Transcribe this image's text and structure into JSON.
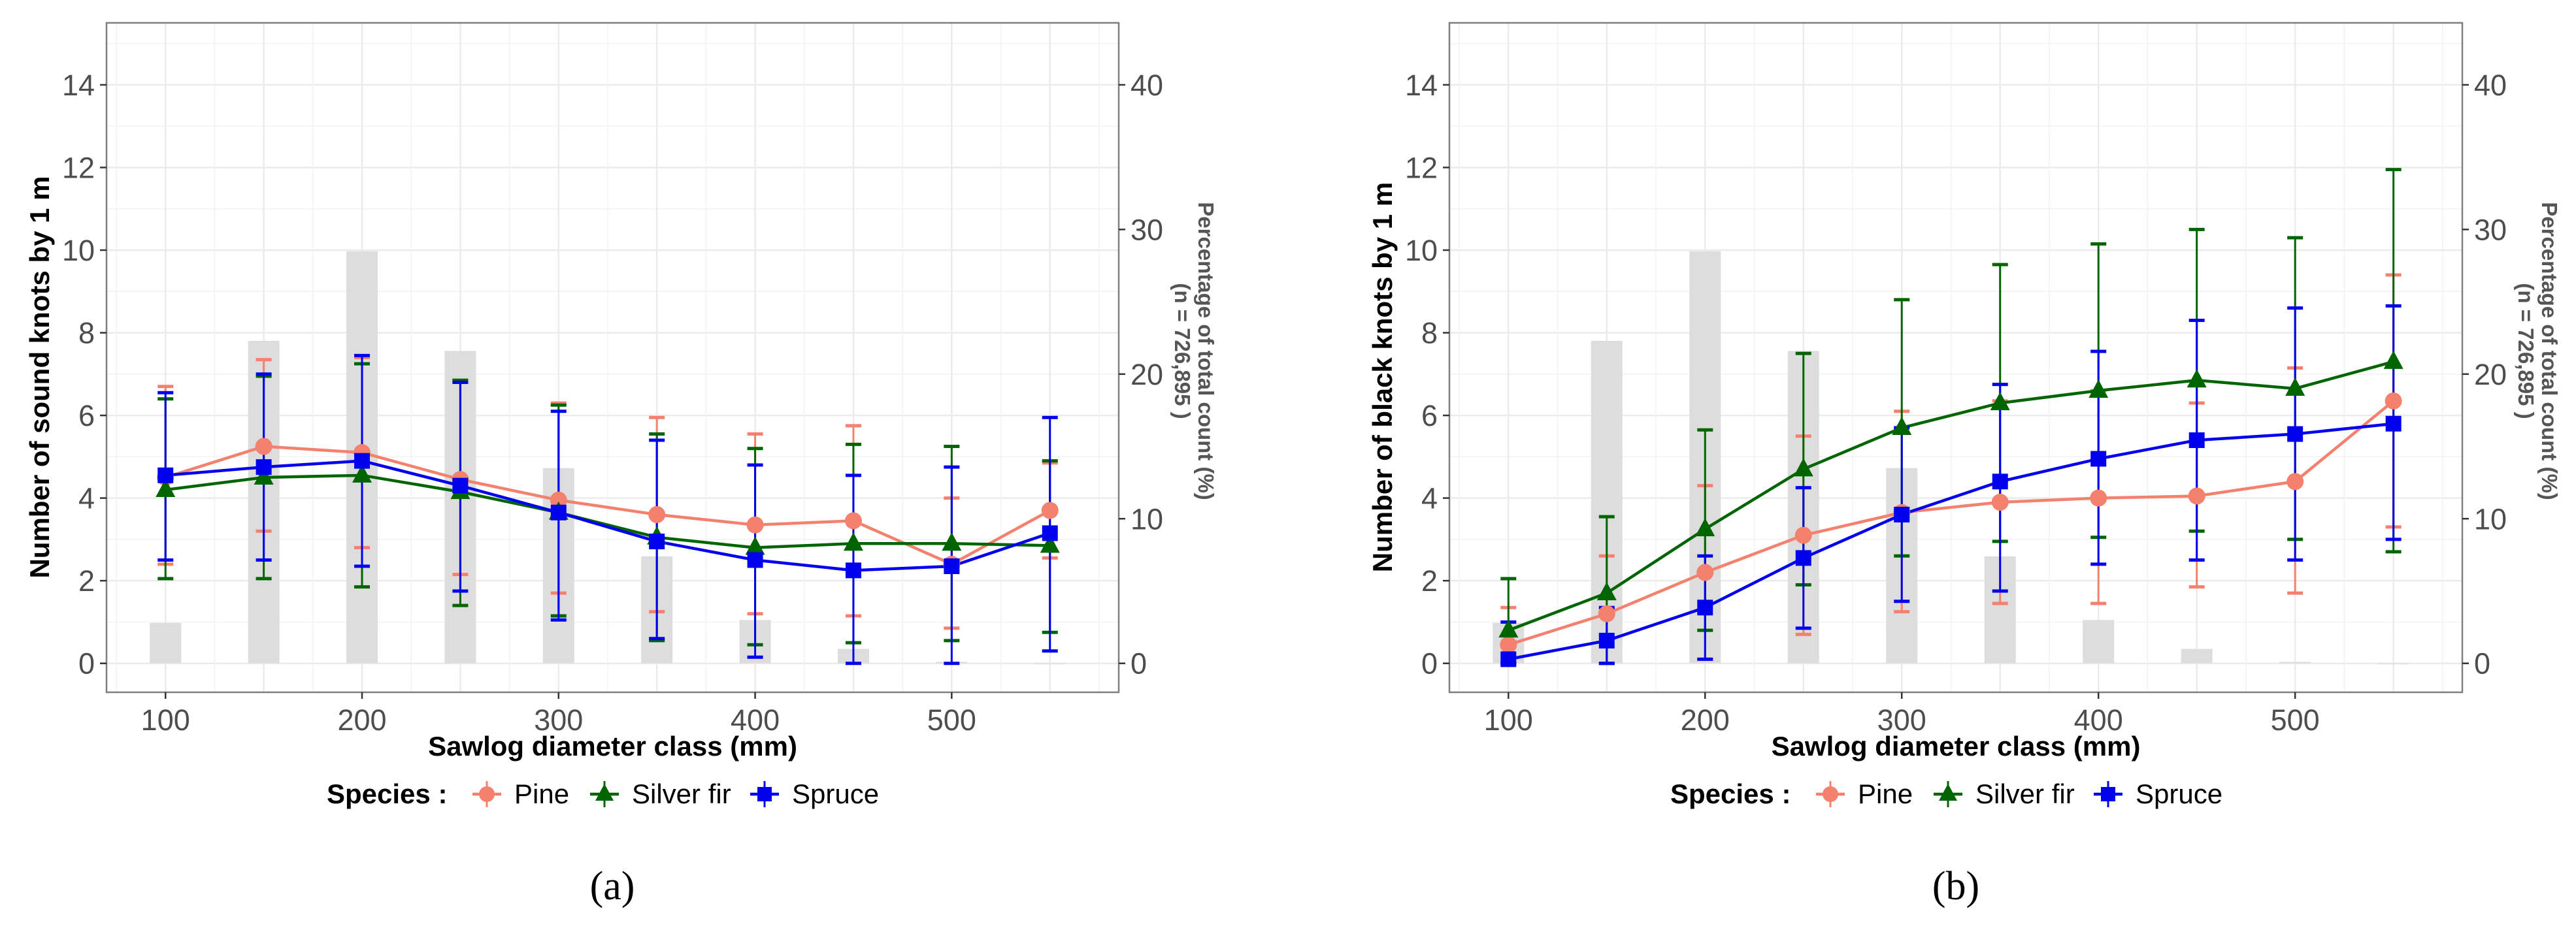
{
  "legend": {
    "title": "Species :",
    "items": [
      "Pine",
      "Silver fir",
      "Spruce"
    ]
  },
  "colors": {
    "Pine": "#f4806e",
    "Silver fir": "#006400",
    "Spruce": "#0000ee",
    "bars": "#dddddd"
  },
  "chart_data": [
    {
      "type": "line",
      "panel_label": "(a)",
      "xlabel": "Sawlog diameter class (mm)",
      "ylabel": "Number of sound knots by 1 m",
      "y2label": "Percentage of total count (%)",
      "y2label_n": "(n = 726,895 )",
      "x": [
        100,
        150,
        200,
        250,
        300,
        350,
        400,
        450,
        500,
        550
      ],
      "x_ticks": [
        "100",
        "200",
        "300",
        "400",
        "500"
      ],
      "y_ticks": [
        "0",
        "2",
        "4",
        "6",
        "8",
        "10",
        "12",
        "14"
      ],
      "y2_ticks": [
        "0",
        "10",
        "20",
        "30",
        "40"
      ],
      "xlim": [
        70,
        585
      ],
      "ylim": [
        -0.7,
        15.5
      ],
      "y2_scale_max_percent": 40,
      "bars_percent": [
        2.8,
        22.3,
        28.5,
        21.6,
        13.5,
        7.4,
        3.0,
        1.0,
        0.1,
        0.0
      ],
      "series": [
        {
          "name": "Pine",
          "marker": "circle",
          "values": [
            4.5,
            5.25,
            5.1,
            4.45,
            3.95,
            3.6,
            3.35,
            3.45,
            2.4,
            3.7
          ],
          "err_low": [
            2.4,
            3.2,
            2.8,
            2.15,
            1.7,
            1.25,
            1.2,
            1.15,
            0.85,
            2.55
          ],
          "err_high": [
            6.7,
            7.35,
            7.4,
            6.85,
            6.3,
            5.95,
            5.55,
            5.75,
            4.0,
            4.85
          ]
        },
        {
          "name": "Silver fir",
          "marker": "triangle",
          "values": [
            4.2,
            4.5,
            4.55,
            4.15,
            3.65,
            3.05,
            2.8,
            2.9,
            2.9,
            2.85
          ],
          "err_low": [
            2.05,
            2.05,
            1.85,
            1.4,
            1.15,
            0.55,
            0.45,
            0.5,
            0.55,
            0.75
          ],
          "err_high": [
            6.4,
            6.95,
            7.25,
            6.85,
            6.25,
            5.55,
            5.2,
            5.3,
            5.25,
            4.9
          ]
        },
        {
          "name": "Spruce",
          "marker": "square",
          "values": [
            4.55,
            4.75,
            4.9,
            4.3,
            3.65,
            2.95,
            2.5,
            2.25,
            2.35,
            3.15
          ],
          "err_low": [
            2.5,
            2.5,
            2.35,
            1.75,
            1.05,
            0.6,
            0.15,
            0.0,
            0.0,
            0.3
          ],
          "err_high": [
            6.55,
            7.0,
            7.45,
            6.8,
            6.1,
            5.4,
            4.8,
            4.55,
            4.75,
            5.95
          ]
        }
      ]
    },
    {
      "type": "line",
      "panel_label": "(b)",
      "xlabel": "Sawlog diameter class (mm)",
      "ylabel": "Number of black knots by 1 m",
      "y2label": "Percentage of total count (%)",
      "y2label_n": "(n = 726,895 )",
      "x": [
        100,
        150,
        200,
        250,
        300,
        350,
        400,
        450,
        500,
        550
      ],
      "x_ticks": [
        "100",
        "200",
        "300",
        "400",
        "500"
      ],
      "y_ticks": [
        "0",
        "2",
        "4",
        "6",
        "8",
        "10",
        "12",
        "14"
      ],
      "y2_ticks": [
        "0",
        "10",
        "20",
        "30",
        "40"
      ],
      "xlim": [
        70,
        585
      ],
      "ylim": [
        -0.7,
        15.5
      ],
      "y2_scale_max_percent": 40,
      "bars_percent": [
        2.8,
        22.3,
        28.5,
        21.6,
        13.5,
        7.4,
        3.0,
        1.0,
        0.1,
        0.0
      ],
      "series": [
        {
          "name": "Pine",
          "marker": "circle",
          "values": [
            0.45,
            1.2,
            2.2,
            3.1,
            3.65,
            3.9,
            4.0,
            4.05,
            4.4,
            6.35
          ],
          "err_low": [
            0.0,
            0.0,
            0.1,
            0.7,
            1.25,
            1.45,
            1.45,
            1.85,
            1.7,
            3.3
          ],
          "err_high": [
            1.35,
            2.6,
            4.3,
            5.5,
            6.1,
            6.35,
            6.6,
            6.3,
            7.15,
            9.4
          ]
        },
        {
          "name": "Silver fir",
          "marker": "triangle",
          "values": [
            0.8,
            1.7,
            3.25,
            4.7,
            5.7,
            6.3,
            6.6,
            6.85,
            6.65,
            7.3
          ],
          "err_low": [
            0.0,
            0.0,
            0.8,
            1.9,
            2.6,
            2.95,
            3.05,
            3.2,
            3.0,
            2.7
          ],
          "err_high": [
            2.05,
            3.55,
            5.65,
            7.5,
            8.8,
            9.65,
            10.15,
            10.5,
            10.3,
            11.95
          ]
        },
        {
          "name": "Spruce",
          "marker": "square",
          "values": [
            0.1,
            0.55,
            1.35,
            2.55,
            3.6,
            4.4,
            4.95,
            5.4,
            5.55,
            5.8
          ],
          "err_low": [
            0.0,
            0.0,
            0.1,
            0.85,
            1.5,
            1.75,
            2.4,
            2.5,
            2.5,
            3.0
          ],
          "err_high": [
            1.0,
            1.35,
            2.6,
            4.25,
            5.7,
            6.75,
            7.55,
            8.3,
            8.6,
            8.65
          ]
        }
      ]
    }
  ]
}
